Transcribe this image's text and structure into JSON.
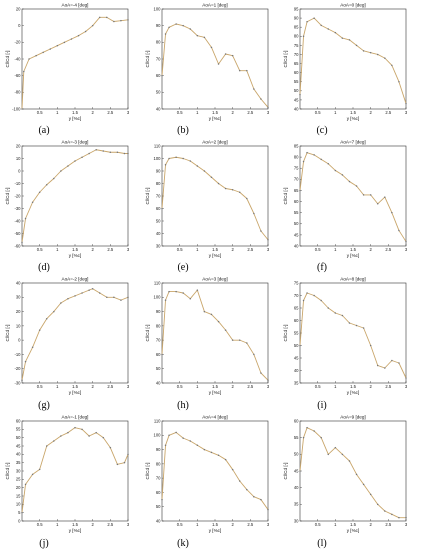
{
  "figure": {
    "background": "#ffffff",
    "line_color": "#c9a66b",
    "marker_color": "#777777"
  },
  "chart_data": [
    {
      "type": "line",
      "panel_label": "(a)",
      "title": "AoA=-4 [deg]",
      "xlabel": "y [%c]",
      "ylabel": "Cl/Cd [-]",
      "xlim": [
        0,
        3
      ],
      "ylim": [
        -100,
        20
      ],
      "x_ticks": [
        "0.5",
        "1",
        "1.5",
        "2",
        "2.5",
        "3"
      ],
      "y_ticks": [
        "-100",
        "-80",
        "-60",
        "-40",
        "-20",
        "0",
        "20"
      ],
      "x": [
        0.0,
        0.05,
        0.2,
        0.4,
        0.6,
        0.8,
        1.0,
        1.2,
        1.4,
        1.6,
        1.8,
        2.0,
        2.2,
        2.4,
        2.6,
        2.8,
        3.0
      ],
      "values": [
        -100,
        -55,
        -40,
        -36,
        -32,
        -28,
        -24,
        -20,
        -16,
        -12,
        -7,
        0,
        10,
        10,
        5,
        6,
        7
      ]
    },
    {
      "type": "line",
      "panel_label": "(b)",
      "title": "AoA=1 [deg]",
      "xlabel": "y [%c]",
      "ylabel": "Cl/Cd [-]",
      "xlim": [
        0,
        3
      ],
      "ylim": [
        40,
        100
      ],
      "x_ticks": [
        "0.5",
        "1",
        "1.5",
        "2",
        "2.5",
        "3"
      ],
      "y_ticks": [
        "40",
        "50",
        "60",
        "70",
        "80",
        "90",
        "100"
      ],
      "x": [
        0.0,
        0.1,
        0.2,
        0.4,
        0.6,
        0.8,
        1.0,
        1.2,
        1.4,
        1.6,
        1.8,
        2.0,
        2.2,
        2.4,
        2.6,
        2.8,
        3.0
      ],
      "values": [
        60,
        85,
        89,
        91,
        90,
        88,
        84,
        83,
        77,
        67,
        73,
        72,
        63,
        63,
        52,
        46,
        41
      ]
    },
    {
      "type": "line",
      "panel_label": "(c)",
      "title": "AoA=0 [deg]",
      "xlabel": "y [%c]",
      "ylabel": "Cl/Cd [-]",
      "xlim": [
        0,
        3
      ],
      "ylim": [
        40,
        95
      ],
      "x_ticks": [
        "0.5",
        "1",
        "1.5",
        "2",
        "2.5",
        "3"
      ],
      "y_ticks": [
        "40",
        "45",
        "50",
        "55",
        "60",
        "65",
        "70",
        "75",
        "80",
        "85",
        "90",
        "95"
      ],
      "x": [
        0.0,
        0.1,
        0.2,
        0.4,
        0.6,
        0.8,
        1.0,
        1.2,
        1.4,
        1.6,
        1.8,
        2.0,
        2.2,
        2.4,
        2.6,
        2.8,
        3.0
      ],
      "values": [
        48,
        80,
        88,
        90,
        86,
        84,
        82,
        79,
        78,
        75,
        72,
        71,
        70,
        68,
        64,
        55,
        43
      ]
    },
    {
      "type": "line",
      "panel_label": "(d)",
      "title": "AoA=-3 [deg]",
      "xlabel": "y [%c]",
      "ylabel": "Cl/Cd [-]",
      "xlim": [
        0,
        3
      ],
      "ylim": [
        -60,
        20
      ],
      "x_ticks": [
        "0.5",
        "1",
        "1.5",
        "2",
        "2.5",
        "3"
      ],
      "y_ticks": [
        "-60",
        "-50",
        "-40",
        "-30",
        "-20",
        "-10",
        "0",
        "10",
        "20"
      ],
      "x": [
        0.0,
        0.1,
        0.3,
        0.5,
        0.7,
        0.9,
        1.1,
        1.3,
        1.5,
        1.7,
        1.9,
        2.1,
        2.3,
        2.5,
        2.7,
        2.9,
        3.0
      ],
      "values": [
        -57,
        -38,
        -25,
        -17,
        -11,
        -6,
        0,
        4,
        8,
        11,
        14,
        17,
        16,
        15,
        15,
        14,
        14
      ]
    },
    {
      "type": "line",
      "panel_label": "(e)",
      "title": "AoA=2 [deg]",
      "xlabel": "y [%c]",
      "ylabel": "Cl/Cd [-]",
      "xlim": [
        0,
        3
      ],
      "ylim": [
        30,
        110
      ],
      "x_ticks": [
        "0.5",
        "1",
        "1.5",
        "2",
        "2.5",
        "3"
      ],
      "y_ticks": [
        "30",
        "40",
        "50",
        "60",
        "70",
        "80",
        "90",
        "100",
        "110"
      ],
      "x": [
        0.0,
        0.1,
        0.2,
        0.4,
        0.6,
        0.8,
        1.0,
        1.2,
        1.4,
        1.6,
        1.8,
        2.0,
        2.2,
        2.4,
        2.6,
        2.8,
        3.0
      ],
      "values": [
        60,
        95,
        100,
        101,
        100,
        98,
        94,
        90,
        85,
        80,
        76,
        75,
        73,
        68,
        56,
        42,
        35
      ]
    },
    {
      "type": "line",
      "panel_label": "(f)",
      "title": "AoA=7 [deg]",
      "xlabel": "y [%c]",
      "ylabel": "Cl/Cd [-]",
      "xlim": [
        0,
        3
      ],
      "ylim": [
        40,
        85
      ],
      "x_ticks": [
        "0.5",
        "1",
        "1.5",
        "2",
        "2.5",
        "3"
      ],
      "y_ticks": [
        "40",
        "45",
        "50",
        "55",
        "60",
        "65",
        "70",
        "75",
        "80",
        "85"
      ],
      "x": [
        0.0,
        0.1,
        0.2,
        0.4,
        0.6,
        0.8,
        1.0,
        1.2,
        1.4,
        1.6,
        1.8,
        2.0,
        2.2,
        2.4,
        2.6,
        2.8,
        3.0
      ],
      "values": [
        65,
        78,
        82,
        81,
        79,
        77,
        74,
        72,
        69,
        67,
        63,
        63,
        59,
        62,
        55,
        47,
        42
      ]
    },
    {
      "type": "line",
      "panel_label": "(g)",
      "title": "AoA=-2 [deg]",
      "xlabel": "y [%c]",
      "ylabel": "Cl/Cd [-]",
      "xlim": [
        0,
        3
      ],
      "ylim": [
        -30,
        40
      ],
      "x_ticks": [
        "0.5",
        "1",
        "1.5",
        "2",
        "2.5",
        "3"
      ],
      "y_ticks": [
        "-30",
        "-20",
        "-10",
        "0",
        "10",
        "20",
        "30",
        "40"
      ],
      "x": [
        0.0,
        0.1,
        0.3,
        0.5,
        0.7,
        0.9,
        1.1,
        1.3,
        1.5,
        1.7,
        1.9,
        2.0,
        2.2,
        2.4,
        2.6,
        2.8,
        3.0
      ],
      "values": [
        -28,
        -15,
        -5,
        7,
        15,
        20,
        26,
        29,
        31,
        33,
        35,
        36,
        33,
        30,
        30,
        28,
        30
      ]
    },
    {
      "type": "line",
      "panel_label": "(h)",
      "title": "AoA=3 [deg]",
      "xlabel": "y [%c]",
      "ylabel": "Cl/Cd [-]",
      "xlim": [
        0,
        3
      ],
      "ylim": [
        40,
        110
      ],
      "x_ticks": [
        "0.5",
        "1",
        "1.5",
        "2",
        "2.5",
        "3"
      ],
      "y_ticks": [
        "40",
        "50",
        "60",
        "70",
        "80",
        "90",
        "100",
        "110"
      ],
      "x": [
        0.0,
        0.1,
        0.2,
        0.4,
        0.6,
        0.8,
        1.0,
        1.2,
        1.4,
        1.6,
        1.8,
        2.0,
        2.2,
        2.4,
        2.6,
        2.8,
        3.0
      ],
      "values": [
        60,
        98,
        104,
        104,
        103,
        99,
        105,
        90,
        88,
        83,
        77,
        70,
        70,
        68,
        60,
        47,
        42
      ]
    },
    {
      "type": "line",
      "panel_label": "(i)",
      "title": "AoA=8 [deg]",
      "xlabel": "y [%c]",
      "ylabel": "Cl/Cd [-]",
      "xlim": [
        0,
        3
      ],
      "ylim": [
        35,
        75
      ],
      "x_ticks": [
        "0.5",
        "1",
        "1.5",
        "2",
        "2.5",
        "3"
      ],
      "y_ticks": [
        "35",
        "40",
        "45",
        "50",
        "55",
        "60",
        "65",
        "70",
        "75"
      ],
      "x": [
        0.0,
        0.1,
        0.2,
        0.4,
        0.6,
        0.8,
        1.0,
        1.2,
        1.4,
        1.6,
        1.8,
        2.0,
        2.2,
        2.4,
        2.6,
        2.8,
        3.0
      ],
      "values": [
        50,
        68,
        71,
        70,
        68,
        65,
        63,
        62,
        59,
        58,
        57,
        50,
        42,
        41,
        44,
        43,
        37
      ]
    },
    {
      "type": "line",
      "panel_label": "(j)",
      "title": "AoA=-1 [deg]",
      "xlabel": "y [%c]",
      "ylabel": "Cl/Cd [-]",
      "xlim": [
        0,
        3
      ],
      "ylim": [
        0,
        60
      ],
      "x_ticks": [
        "0.5",
        "1",
        "1.5",
        "2",
        "2.5",
        "3"
      ],
      "y_ticks": [
        "0",
        "5",
        "10",
        "15",
        "20",
        "25",
        "30",
        "35",
        "40",
        "45",
        "50",
        "55",
        "60"
      ],
      "x": [
        0.0,
        0.1,
        0.3,
        0.5,
        0.7,
        0.9,
        1.1,
        1.3,
        1.5,
        1.7,
        1.9,
        2.1,
        2.3,
        2.5,
        2.7,
        2.9,
        3.0
      ],
      "values": [
        5,
        22,
        28,
        31,
        45,
        48,
        51,
        53,
        56,
        55,
        51,
        53,
        50,
        44,
        34,
        35,
        40
      ]
    },
    {
      "type": "line",
      "panel_label": "(k)",
      "title": "AoA=4 [deg]",
      "xlabel": "y [%c]",
      "ylabel": "Cl/Cd [-]",
      "xlim": [
        0,
        3
      ],
      "ylim": [
        40,
        110
      ],
      "x_ticks": [
        "0.5",
        "1",
        "1.5",
        "2",
        "2.5",
        "3"
      ],
      "y_ticks": [
        "40",
        "50",
        "60",
        "70",
        "80",
        "90",
        "100",
        "110"
      ],
      "x": [
        0.0,
        0.1,
        0.2,
        0.4,
        0.6,
        0.8,
        1.0,
        1.2,
        1.4,
        1.6,
        1.8,
        2.0,
        2.2,
        2.4,
        2.6,
        2.8,
        3.0
      ],
      "values": [
        55,
        93,
        100,
        102,
        98,
        96,
        93,
        90,
        88,
        86,
        83,
        76,
        68,
        62,
        57,
        55,
        48
      ]
    },
    {
      "type": "line",
      "panel_label": "(l)",
      "title": "AoA=9 [deg]",
      "xlabel": "y [%c]",
      "ylabel": "Cl/Cd [-]",
      "xlim": [
        0,
        3
      ],
      "ylim": [
        30,
        60
      ],
      "x_ticks": [
        "0.5",
        "1",
        "1.5",
        "2",
        "2.5",
        "3"
      ],
      "y_ticks": [
        "30",
        "35",
        "40",
        "45",
        "50",
        "55",
        "60"
      ],
      "x": [
        0.0,
        0.1,
        0.2,
        0.4,
        0.6,
        0.8,
        1.0,
        1.2,
        1.4,
        1.6,
        1.8,
        2.0,
        2.2,
        2.4,
        2.6,
        2.8,
        3.0
      ],
      "values": [
        45,
        55,
        58,
        57,
        55,
        50,
        52,
        50,
        48,
        44,
        41,
        38,
        35,
        33,
        32,
        31,
        31
      ]
    }
  ]
}
